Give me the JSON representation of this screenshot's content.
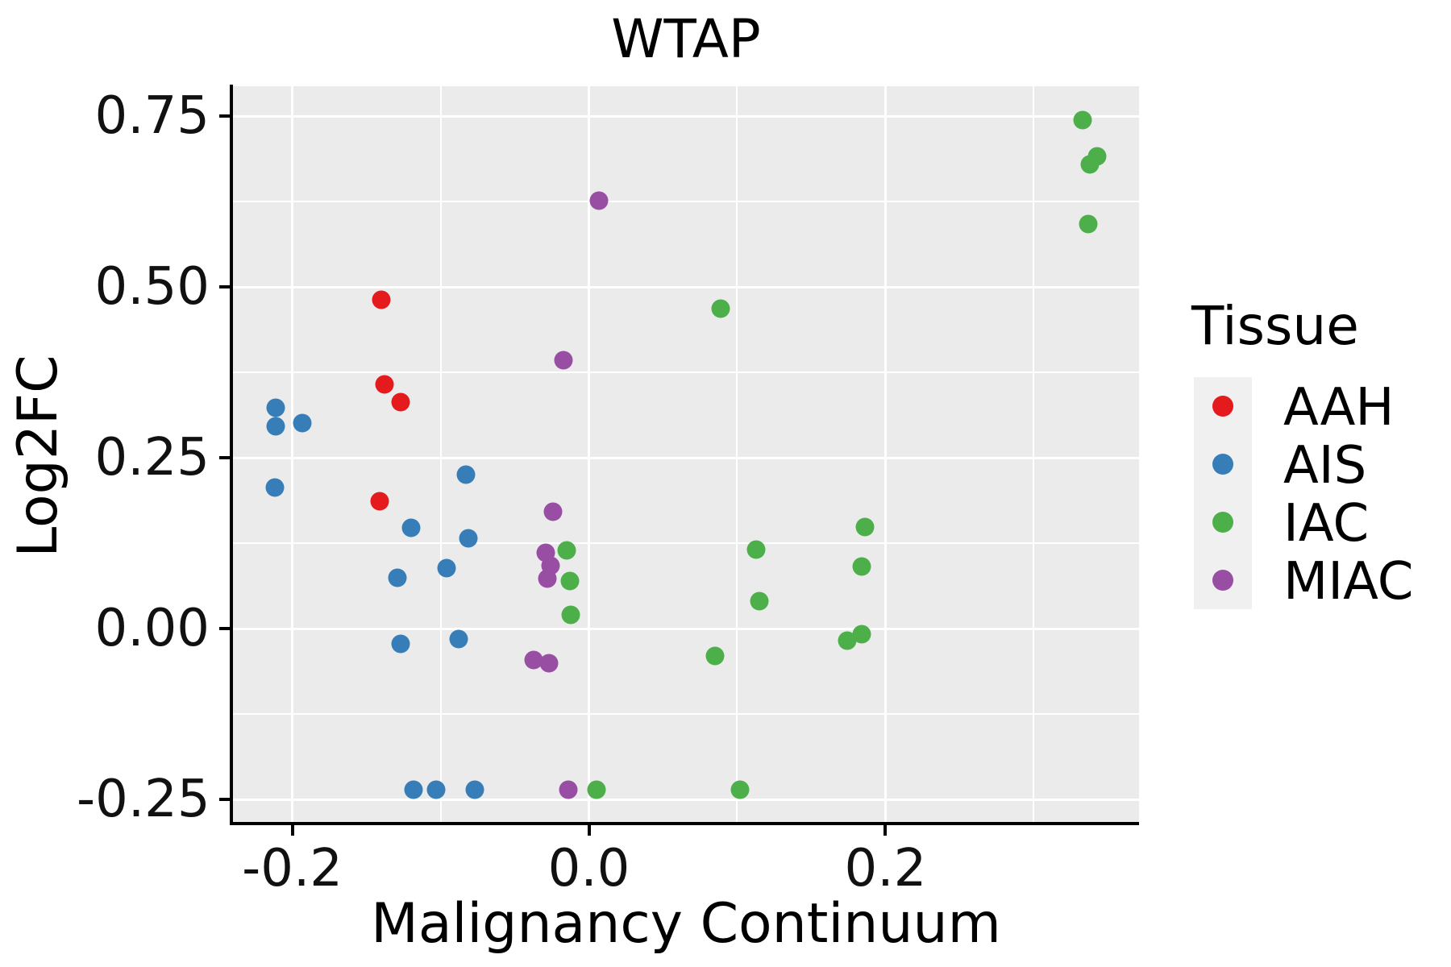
{
  "title": "WTAP",
  "colors": {
    "page_bg": "#FFFFFF",
    "panel_bg": "#EBEBEB",
    "grid": "#FFFFFF",
    "axis": "#000000",
    "text": "#000000",
    "legend_key_bg": "#F0F0F0",
    "aah": "#E41A1C",
    "ais": "#377EB8",
    "iac": "#4DAF4A",
    "miac": "#984EA3"
  },
  "chart_data": {
    "type": "scatter",
    "title": "WTAP",
    "xlabel": "Malignancy Continuum",
    "ylabel": "Log2FC",
    "xlim": [
      -0.24,
      0.371
    ],
    "ylim": [
      -0.283,
      0.794
    ],
    "grid": true,
    "legend_position": "right",
    "legend_title": "Tissue",
    "x_ticks": {
      "values": [
        -0.2,
        0.0,
        0.2
      ],
      "labels": [
        "-0.2",
        "0.0",
        "0.2"
      ]
    },
    "x_minor_ticks": [
      -0.1,
      0.1,
      0.3
    ],
    "y_ticks": {
      "values": [
        0.75,
        0.5,
        0.25,
        0.0,
        -0.25
      ],
      "labels": [
        "0.75",
        "0.50",
        "0.25",
        "0.00",
        "-0.25"
      ]
    },
    "y_minor_ticks": [
      0.625,
      0.375,
      0.125,
      -0.125
    ],
    "series": [
      {
        "name": "AAH",
        "color": "#E41A1C",
        "points": [
          [
            -0.14,
            0.481
          ],
          [
            -0.138,
            0.358
          ],
          [
            -0.127,
            0.331
          ],
          [
            -0.141,
            0.187
          ]
        ]
      },
      {
        "name": "AIS",
        "color": "#377EB8",
        "points": [
          [
            -0.211,
            0.323
          ],
          [
            -0.211,
            0.296
          ],
          [
            -0.193,
            0.301
          ],
          [
            -0.212,
            0.207
          ],
          [
            -0.083,
            0.225
          ],
          [
            -0.12,
            0.148
          ],
          [
            -0.081,
            0.132
          ],
          [
            -0.096,
            0.088
          ],
          [
            -0.129,
            0.074
          ],
          [
            -0.127,
            -0.022
          ],
          [
            -0.088,
            -0.015
          ],
          [
            -0.118,
            -0.236
          ],
          [
            -0.103,
            -0.236
          ],
          [
            -0.077,
            -0.236
          ]
        ]
      },
      {
        "name": "IAC",
        "color": "#4DAF4A",
        "points": [
          [
            0.333,
            0.745
          ],
          [
            0.343,
            0.691
          ],
          [
            0.338,
            0.679
          ],
          [
            0.337,
            0.592
          ],
          [
            0.089,
            0.468
          ],
          [
            0.186,
            0.149
          ],
          [
            0.113,
            0.116
          ],
          [
            0.184,
            0.091
          ],
          [
            0.115,
            0.04
          ],
          [
            0.174,
            -0.018
          ],
          [
            0.184,
            -0.008
          ],
          [
            0.085,
            -0.04
          ],
          [
            -0.015,
            0.114
          ],
          [
            -0.013,
            0.07
          ],
          [
            -0.012,
            0.02
          ],
          [
            0.005,
            -0.236
          ],
          [
            0.102,
            -0.236
          ]
        ]
      },
      {
        "name": "MIAC",
        "color": "#984EA3",
        "points": [
          [
            0.007,
            0.627
          ],
          [
            -0.017,
            0.393
          ],
          [
            -0.024,
            0.171
          ],
          [
            -0.029,
            0.111
          ],
          [
            -0.026,
            0.092
          ],
          [
            -0.028,
            0.073
          ],
          [
            -0.037,
            -0.046
          ],
          [
            -0.027,
            -0.051
          ],
          [
            -0.014,
            -0.236
          ]
        ]
      }
    ]
  }
}
